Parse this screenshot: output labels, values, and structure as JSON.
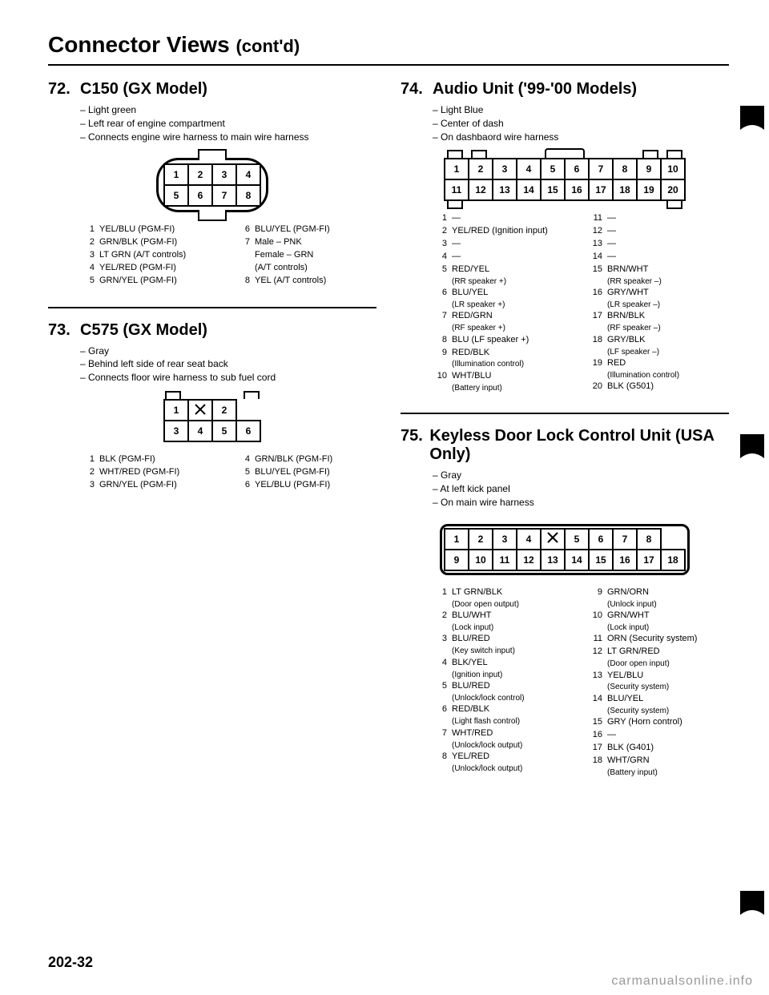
{
  "page_title_main": "Connector Views",
  "page_title_sub": "(cont'd)",
  "page_number": "202-32",
  "watermark": "carmanualsonline.info",
  "sections": {
    "s72": {
      "num": "72.",
      "title": "C150 (GX Model)",
      "notes": [
        "Light green",
        "Left rear of engine compartment",
        "Connects engine wire harness to main wire harness"
      ],
      "conn": {
        "rows": [
          [
            "1",
            "2",
            "3",
            "4"
          ],
          [
            "5",
            "6",
            "7",
            "8"
          ]
        ],
        "oval": true
      },
      "pins_left": [
        {
          "n": "1",
          "t": "YEL/BLU (PGM-FI)"
        },
        {
          "n": "2",
          "t": "GRN/BLK (PGM-FI)"
        },
        {
          "n": "3",
          "t": "LT GRN (A/T controls)"
        },
        {
          "n": "4",
          "t": "YEL/RED (PGM-FI)"
        },
        {
          "n": "5",
          "t": "GRN/YEL (PGM-FI)"
        }
      ],
      "pins_right": [
        {
          "n": "6",
          "t": "BLU/YEL (PGM-FI)"
        },
        {
          "n": "7",
          "t": "Male – PNK"
        },
        {
          "n": "",
          "t": "Female – GRN"
        },
        {
          "n": "",
          "t": "(A/T controls)"
        },
        {
          "n": "8",
          "t": "YEL (A/T controls)"
        }
      ]
    },
    "s73": {
      "num": "73.",
      "title": "C575 (GX Model)",
      "notes": [
        "Gray",
        "Behind left side of rear seat back",
        "Connects floor wire harness to sub fuel cord"
      ],
      "conn": {
        "rows": [
          [
            "1",
            "",
            "2"
          ],
          [
            "3",
            "4",
            "5",
            "6"
          ]
        ],
        "tabs": "top"
      },
      "pins_left": [
        {
          "n": "1",
          "t": "BLK (PGM-FI)"
        },
        {
          "n": "2",
          "t": "WHT/RED (PGM-FI)"
        },
        {
          "n": "3",
          "t": "GRN/YEL (PGM-FI)"
        }
      ],
      "pins_right": [
        {
          "n": "4",
          "t": "GRN/BLK (PGM-FI)"
        },
        {
          "n": "5",
          "t": "BLU/YEL (PGM-FI)"
        },
        {
          "n": "6",
          "t": "YEL/BLU (PGM-FI)"
        }
      ]
    },
    "s74": {
      "num": "74.",
      "title": "Audio Unit ('99-'00 Models)",
      "notes": [
        "Light Blue",
        "Center of dash",
        "On dashbaord wire harness"
      ],
      "conn": {
        "rows": [
          [
            "1",
            "2",
            "3",
            "4",
            "5",
            "6",
            "7",
            "8",
            "9",
            "10"
          ],
          [
            "11",
            "12",
            "13",
            "14",
            "15",
            "16",
            "17",
            "18",
            "19",
            "20"
          ]
        ],
        "tabs": "both"
      },
      "pins_left": [
        {
          "n": "1",
          "t": "—"
        },
        {
          "n": "2",
          "t": "YEL/RED (Ignition input)"
        },
        {
          "n": "3",
          "t": "—"
        },
        {
          "n": "4",
          "t": "—"
        },
        {
          "n": "5",
          "t": "RED/YEL",
          "s": "(RR speaker +)"
        },
        {
          "n": "6",
          "t": "BLU/YEL",
          "s": "(LR speaker +)"
        },
        {
          "n": "7",
          "t": "RED/GRN",
          "s": "(RF speaker +)"
        },
        {
          "n": "8",
          "t": "BLU (LF speaker +)"
        },
        {
          "n": "9",
          "t": "RED/BLK",
          "s": "(Illumination control)"
        },
        {
          "n": "10",
          "t": "WHT/BLU",
          "s": "(Battery input)"
        }
      ],
      "pins_right": [
        {
          "n": "11",
          "t": "—"
        },
        {
          "n": "12",
          "t": "—"
        },
        {
          "n": "13",
          "t": "—"
        },
        {
          "n": "14",
          "t": "—"
        },
        {
          "n": "15",
          "t": "BRN/WHT",
          "s": "(RR speaker –)"
        },
        {
          "n": "16",
          "t": "GRY/WHT",
          "s": "(LR speaker –)"
        },
        {
          "n": "17",
          "t": "BRN/BLK",
          "s": "(RF speaker –)"
        },
        {
          "n": "18",
          "t": "GRY/BLK",
          "s": "(LF speaker –)"
        },
        {
          "n": "19",
          "t": "RED",
          "s": "(Illumination control)"
        },
        {
          "n": "20",
          "t": "BLK (G501)"
        }
      ]
    },
    "s75": {
      "num": "75.",
      "title": "Keyless Door Lock Control Unit (USA Only)",
      "notes": [
        "Gray",
        "At left kick panel",
        "On main wire harness"
      ],
      "conn": {
        "rows": [
          [
            "1",
            "2",
            "3",
            "4",
            "",
            "5",
            "6",
            "7",
            "8"
          ],
          [
            "9",
            "10",
            "11",
            "12",
            "13",
            "14",
            "15",
            "16",
            "17",
            "18"
          ]
        ],
        "tabs": "both",
        "center_top": true
      },
      "pins_left": [
        {
          "n": "1",
          "t": "LT GRN/BLK",
          "s": "(Door open output)"
        },
        {
          "n": "2",
          "t": "BLU/WHT",
          "s": "(Lock input)"
        },
        {
          "n": "3",
          "t": "BLU/RED",
          "s": "(Key switch input)"
        },
        {
          "n": "4",
          "t": "BLK/YEL",
          "s": "(Ignition input)"
        },
        {
          "n": "5",
          "t": "BLU/RED",
          "s": "(Unlock/lock control)"
        },
        {
          "n": "6",
          "t": "RED/BLK",
          "s": "(Light flash control)"
        },
        {
          "n": "7",
          "t": "WHT/RED",
          "s": "(Unlock/lock output)"
        },
        {
          "n": "8",
          "t": "YEL/RED",
          "s": "(Unlock/lock output)"
        }
      ],
      "pins_right": [
        {
          "n": "9",
          "t": "GRN/ORN",
          "s": "(Unlock input)"
        },
        {
          "n": "10",
          "t": "GRN/WHT",
          "s": "(Lock input)"
        },
        {
          "n": "11",
          "t": "ORN (Security system)"
        },
        {
          "n": "12",
          "t": "LT GRN/RED",
          "s": "(Door open input)"
        },
        {
          "n": "13",
          "t": "YEL/BLU",
          "s": "(Security system)"
        },
        {
          "n": "14",
          "t": "BLU/YEL",
          "s": "(Security system)"
        },
        {
          "n": "15",
          "t": "GRY (Horn control)"
        },
        {
          "n": "16",
          "t": "—"
        },
        {
          "n": "17",
          "t": "BLK (G401)"
        },
        {
          "n": "18",
          "t": "WHT/GRN",
          "s": "(Battery input)"
        }
      ]
    }
  }
}
